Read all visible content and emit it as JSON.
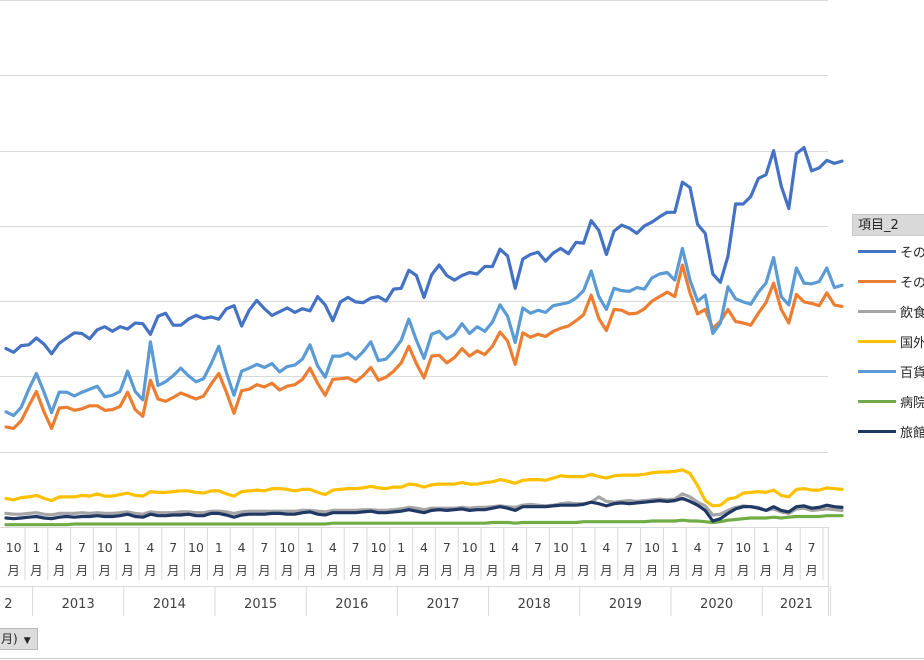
{
  "chart_data": {
    "type": "line",
    "x_start": "2012-09",
    "ylim": [
      0,
      7
    ],
    "legend": {
      "title": "項目_2",
      "position": "right"
    },
    "x_axis": {
      "month_ticks": [
        {
          "date": "2012-10",
          "month": "10",
          "unit": "月"
        },
        {
          "date": "2013-01",
          "month": "1",
          "unit": "月"
        },
        {
          "date": "2013-04",
          "month": "4",
          "unit": "月"
        },
        {
          "date": "2013-07",
          "month": "7",
          "unit": "月"
        },
        {
          "date": "2013-10",
          "month": "10",
          "unit": "月"
        },
        {
          "date": "2014-01",
          "month": "1",
          "unit": "月"
        },
        {
          "date": "2014-04",
          "month": "4",
          "unit": "月"
        },
        {
          "date": "2014-07",
          "month": "7",
          "unit": "月"
        },
        {
          "date": "2014-10",
          "month": "10",
          "unit": "月"
        },
        {
          "date": "2015-01",
          "month": "1",
          "unit": "月"
        },
        {
          "date": "2015-04",
          "month": "4",
          "unit": "月"
        },
        {
          "date": "2015-07",
          "month": "7",
          "unit": "月"
        },
        {
          "date": "2015-10",
          "month": "10",
          "unit": "月"
        },
        {
          "date": "2016-01",
          "month": "1",
          "unit": "月"
        },
        {
          "date": "2016-04",
          "month": "4",
          "unit": "月"
        },
        {
          "date": "2016-07",
          "month": "7",
          "unit": "月"
        },
        {
          "date": "2016-10",
          "month": "10",
          "unit": "月"
        },
        {
          "date": "2017-01",
          "month": "1",
          "unit": "月"
        },
        {
          "date": "2017-04",
          "month": "4",
          "unit": "月"
        },
        {
          "date": "2017-07",
          "month": "7",
          "unit": "月"
        },
        {
          "date": "2017-10",
          "month": "10",
          "unit": "月"
        },
        {
          "date": "2018-01",
          "month": "1",
          "unit": "月"
        },
        {
          "date": "2018-04",
          "month": "4",
          "unit": "月"
        },
        {
          "date": "2018-07",
          "month": "7",
          "unit": "月"
        },
        {
          "date": "2018-10",
          "month": "10",
          "unit": "月"
        },
        {
          "date": "2019-01",
          "month": "1",
          "unit": "月"
        },
        {
          "date": "2019-04",
          "month": "4",
          "unit": "月"
        },
        {
          "date": "2019-07",
          "month": "7",
          "unit": "月"
        },
        {
          "date": "2019-10",
          "month": "10",
          "unit": "月"
        },
        {
          "date": "2020-01",
          "month": "1",
          "unit": "月"
        },
        {
          "date": "2020-04",
          "month": "4",
          "unit": "月"
        },
        {
          "date": "2020-07",
          "month": "7",
          "unit": "月"
        },
        {
          "date": "2020-10",
          "month": "10",
          "unit": "月"
        },
        {
          "date": "2021-01",
          "month": "1",
          "unit": "月"
        },
        {
          "date": "2021-04",
          "month": "4",
          "unit": "月"
        },
        {
          "date": "2021-07",
          "month": "7",
          "unit": "月"
        }
      ],
      "years": [
        {
          "label": "2",
          "first": "2012-09",
          "last": "2012-12"
        },
        {
          "label": "2013",
          "first": "2013-01",
          "last": "2013-12"
        },
        {
          "label": "2014",
          "first": "2014-01",
          "last": "2014-12"
        },
        {
          "label": "2015",
          "first": "2015-01",
          "last": "2015-12"
        },
        {
          "label": "2016",
          "first": "2016-01",
          "last": "2016-12"
        },
        {
          "label": "2017",
          "first": "2017-01",
          "last": "2017-12"
        },
        {
          "label": "2018",
          "first": "2018-01",
          "last": "2018-12"
        },
        {
          "label": "2019",
          "first": "2019-01",
          "last": "2019-12"
        },
        {
          "label": "2020",
          "first": "2020-01",
          "last": "2020-12"
        },
        {
          "label": "2021",
          "first": "2021-01",
          "last": "2021-09"
        }
      ]
    },
    "series": [
      {
        "name": "その",
        "color": "#4472c4",
        "values": [
          2.37,
          2.32,
          2.41,
          2.42,
          2.51,
          2.43,
          2.3,
          2.44,
          2.51,
          2.58,
          2.57,
          2.5,
          2.62,
          2.66,
          2.6,
          2.66,
          2.63,
          2.71,
          2.7,
          2.56,
          2.8,
          2.84,
          2.68,
          2.68,
          2.76,
          2.81,
          2.77,
          2.79,
          2.76,
          2.9,
          2.94,
          2.67,
          2.88,
          3.01,
          2.9,
          2.81,
          2.86,
          2.91,
          2.85,
          2.9,
          2.87,
          3.06,
          2.95,
          2.74,
          2.99,
          3.05,
          2.99,
          2.98,
          3.04,
          3.06,
          3.0,
          3.16,
          3.17,
          3.41,
          3.34,
          3.05,
          3.35,
          3.48,
          3.34,
          3.28,
          3.34,
          3.38,
          3.36,
          3.46,
          3.46,
          3.69,
          3.6,
          3.17,
          3.56,
          3.62,
          3.65,
          3.53,
          3.64,
          3.7,
          3.63,
          3.78,
          3.77,
          4.07,
          3.94,
          3.62,
          3.93,
          4.01,
          3.97,
          3.9,
          4.0,
          4.05,
          4.12,
          4.18,
          4.18,
          4.58,
          4.51,
          4.02,
          3.9,
          3.36,
          3.25,
          3.6,
          4.29,
          4.29,
          4.39,
          4.63,
          4.68,
          5.0,
          4.53,
          4.23,
          4.96,
          5.04,
          4.73,
          4.77,
          4.87,
          4.83,
          4.86
        ]
      },
      {
        "name": "その",
        "color": "#ed7d31",
        "values": [
          1.33,
          1.31,
          1.41,
          1.61,
          1.8,
          1.53,
          1.31,
          1.58,
          1.59,
          1.55,
          1.57,
          1.61,
          1.61,
          1.55,
          1.56,
          1.6,
          1.79,
          1.56,
          1.47,
          1.95,
          1.7,
          1.67,
          1.72,
          1.78,
          1.74,
          1.7,
          1.74,
          1.9,
          2.04,
          1.79,
          1.51,
          1.81,
          1.83,
          1.89,
          1.86,
          1.91,
          1.82,
          1.87,
          1.89,
          1.96,
          2.11,
          1.91,
          1.75,
          1.96,
          1.97,
          1.98,
          1.93,
          2.01,
          2.12,
          1.95,
          1.99,
          2.07,
          2.18,
          2.4,
          2.17,
          1.98,
          2.27,
          2.28,
          2.18,
          2.25,
          2.37,
          2.27,
          2.34,
          2.29,
          2.4,
          2.59,
          2.47,
          2.16,
          2.58,
          2.52,
          2.56,
          2.53,
          2.6,
          2.64,
          2.67,
          2.74,
          2.82,
          3.08,
          2.77,
          2.61,
          2.89,
          2.88,
          2.83,
          2.84,
          2.9,
          3.0,
          3.06,
          3.12,
          3.06,
          3.48,
          3.11,
          2.83,
          2.89,
          2.64,
          2.73,
          2.89,
          2.73,
          2.71,
          2.68,
          2.84,
          2.98,
          3.24,
          2.89,
          2.71,
          3.09,
          2.99,
          2.97,
          2.94,
          3.11,
          2.95,
          2.93
        ]
      },
      {
        "name": "飲食",
        "color": "#a5a5a5",
        "values": [
          0.18,
          0.17,
          0.17,
          0.18,
          0.19,
          0.17,
          0.16,
          0.18,
          0.18,
          0.18,
          0.19,
          0.18,
          0.19,
          0.18,
          0.18,
          0.19,
          0.2,
          0.18,
          0.17,
          0.2,
          0.19,
          0.19,
          0.19,
          0.2,
          0.2,
          0.19,
          0.19,
          0.21,
          0.21,
          0.2,
          0.18,
          0.2,
          0.21,
          0.21,
          0.21,
          0.21,
          0.21,
          0.21,
          0.21,
          0.22,
          0.22,
          0.21,
          0.2,
          0.22,
          0.22,
          0.22,
          0.22,
          0.23,
          0.23,
          0.22,
          0.22,
          0.23,
          0.24,
          0.26,
          0.25,
          0.23,
          0.25,
          0.25,
          0.25,
          0.25,
          0.26,
          0.25,
          0.26,
          0.26,
          0.27,
          0.28,
          0.27,
          0.26,
          0.29,
          0.3,
          0.29,
          0.28,
          0.29,
          0.31,
          0.32,
          0.31,
          0.31,
          0.33,
          0.4,
          0.34,
          0.33,
          0.34,
          0.35,
          0.34,
          0.35,
          0.36,
          0.37,
          0.36,
          0.37,
          0.44,
          0.4,
          0.33,
          0.28,
          0.16,
          0.17,
          0.22,
          0.26,
          0.28,
          0.27,
          0.26,
          0.22,
          0.24,
          0.2,
          0.18,
          0.24,
          0.25,
          0.22,
          0.23,
          0.24,
          0.23,
          0.22
        ]
      },
      {
        "name": "国外",
        "color": "#ffc000",
        "values": [
          0.38,
          0.36,
          0.39,
          0.4,
          0.42,
          0.38,
          0.35,
          0.4,
          0.4,
          0.4,
          0.42,
          0.41,
          0.44,
          0.41,
          0.41,
          0.43,
          0.45,
          0.42,
          0.41,
          0.47,
          0.46,
          0.46,
          0.47,
          0.48,
          0.48,
          0.46,
          0.45,
          0.48,
          0.48,
          0.44,
          0.41,
          0.47,
          0.48,
          0.49,
          0.48,
          0.51,
          0.51,
          0.5,
          0.48,
          0.5,
          0.5,
          0.46,
          0.43,
          0.49,
          0.5,
          0.51,
          0.51,
          0.52,
          0.54,
          0.52,
          0.51,
          0.53,
          0.53,
          0.57,
          0.56,
          0.53,
          0.56,
          0.57,
          0.57,
          0.57,
          0.59,
          0.57,
          0.57,
          0.59,
          0.6,
          0.63,
          0.61,
          0.58,
          0.62,
          0.63,
          0.63,
          0.62,
          0.65,
          0.68,
          0.67,
          0.67,
          0.67,
          0.7,
          0.67,
          0.65,
          0.68,
          0.69,
          0.69,
          0.69,
          0.7,
          0.72,
          0.73,
          0.73,
          0.74,
          0.76,
          0.71,
          0.55,
          0.35,
          0.28,
          0.29,
          0.37,
          0.39,
          0.45,
          0.46,
          0.47,
          0.46,
          0.49,
          0.42,
          0.4,
          0.5,
          0.51,
          0.49,
          0.49,
          0.52,
          0.51,
          0.5
        ]
      },
      {
        "name": "百貨",
        "color": "#5b9bd5",
        "values": [
          1.53,
          1.48,
          1.59,
          1.83,
          2.04,
          1.79,
          1.52,
          1.79,
          1.79,
          1.74,
          1.79,
          1.83,
          1.87,
          1.73,
          1.75,
          1.8,
          2.07,
          1.8,
          1.69,
          2.46,
          1.88,
          1.93,
          2.01,
          2.11,
          2.01,
          1.93,
          1.97,
          2.17,
          2.4,
          2.05,
          1.75,
          2.07,
          2.11,
          2.16,
          2.12,
          2.17,
          2.06,
          2.13,
          2.15,
          2.23,
          2.42,
          2.14,
          1.99,
          2.27,
          2.27,
          2.31,
          2.23,
          2.33,
          2.46,
          2.21,
          2.23,
          2.34,
          2.48,
          2.76,
          2.48,
          2.24,
          2.56,
          2.6,
          2.5,
          2.56,
          2.7,
          2.57,
          2.66,
          2.6,
          2.72,
          2.95,
          2.8,
          2.45,
          2.91,
          2.84,
          2.88,
          2.85,
          2.94,
          2.96,
          2.98,
          3.04,
          3.14,
          3.4,
          3.06,
          2.89,
          3.17,
          3.14,
          3.13,
          3.18,
          3.16,
          3.31,
          3.36,
          3.38,
          3.28,
          3.7,
          3.28,
          3.0,
          3.08,
          2.57,
          2.71,
          3.19,
          3.03,
          2.99,
          2.96,
          3.12,
          3.24,
          3.58,
          3.06,
          2.95,
          3.44,
          3.24,
          3.23,
          3.26,
          3.44,
          3.18,
          3.21
        ]
      },
      {
        "name": "病院",
        "color": "#70ad47",
        "values": [
          0.03,
          0.03,
          0.03,
          0.03,
          0.03,
          0.03,
          0.03,
          0.03,
          0.03,
          0.04,
          0.04,
          0.04,
          0.04,
          0.04,
          0.04,
          0.04,
          0.04,
          0.04,
          0.04,
          0.04,
          0.04,
          0.04,
          0.04,
          0.04,
          0.04,
          0.04,
          0.04,
          0.04,
          0.04,
          0.04,
          0.04,
          0.04,
          0.04,
          0.04,
          0.04,
          0.04,
          0.04,
          0.04,
          0.04,
          0.04,
          0.04,
          0.04,
          0.04,
          0.05,
          0.05,
          0.05,
          0.05,
          0.05,
          0.05,
          0.05,
          0.05,
          0.05,
          0.05,
          0.05,
          0.05,
          0.05,
          0.05,
          0.05,
          0.05,
          0.05,
          0.05,
          0.05,
          0.05,
          0.05,
          0.06,
          0.06,
          0.06,
          0.05,
          0.06,
          0.06,
          0.06,
          0.06,
          0.06,
          0.06,
          0.06,
          0.06,
          0.07,
          0.07,
          0.07,
          0.07,
          0.07,
          0.07,
          0.07,
          0.07,
          0.07,
          0.08,
          0.08,
          0.08,
          0.08,
          0.09,
          0.08,
          0.08,
          0.07,
          0.06,
          0.07,
          0.09,
          0.1,
          0.11,
          0.12,
          0.12,
          0.12,
          0.13,
          0.12,
          0.13,
          0.14,
          0.14,
          0.14,
          0.14,
          0.15,
          0.15,
          0.15
        ]
      },
      {
        "name": "旅館",
        "color": "#203864",
        "values": [
          0.12,
          0.11,
          0.12,
          0.13,
          0.14,
          0.12,
          0.11,
          0.13,
          0.14,
          0.13,
          0.14,
          0.14,
          0.15,
          0.14,
          0.14,
          0.15,
          0.17,
          0.14,
          0.13,
          0.17,
          0.15,
          0.15,
          0.16,
          0.16,
          0.17,
          0.15,
          0.15,
          0.18,
          0.18,
          0.16,
          0.13,
          0.16,
          0.17,
          0.17,
          0.17,
          0.18,
          0.18,
          0.17,
          0.17,
          0.19,
          0.2,
          0.17,
          0.16,
          0.19,
          0.19,
          0.19,
          0.19,
          0.2,
          0.21,
          0.19,
          0.19,
          0.2,
          0.21,
          0.23,
          0.21,
          0.19,
          0.22,
          0.23,
          0.22,
          0.23,
          0.24,
          0.22,
          0.23,
          0.23,
          0.25,
          0.27,
          0.25,
          0.22,
          0.27,
          0.27,
          0.27,
          0.27,
          0.28,
          0.29,
          0.29,
          0.29,
          0.3,
          0.33,
          0.31,
          0.28,
          0.31,
          0.32,
          0.31,
          0.32,
          0.33,
          0.34,
          0.35,
          0.34,
          0.35,
          0.38,
          0.34,
          0.29,
          0.22,
          0.08,
          0.11,
          0.18,
          0.24,
          0.27,
          0.27,
          0.25,
          0.22,
          0.27,
          0.22,
          0.2,
          0.27,
          0.28,
          0.25,
          0.26,
          0.29,
          0.27,
          0.26
        ]
      }
    ]
  },
  "filter_button": {
    "label": "月)",
    "arrow": "▼"
  }
}
